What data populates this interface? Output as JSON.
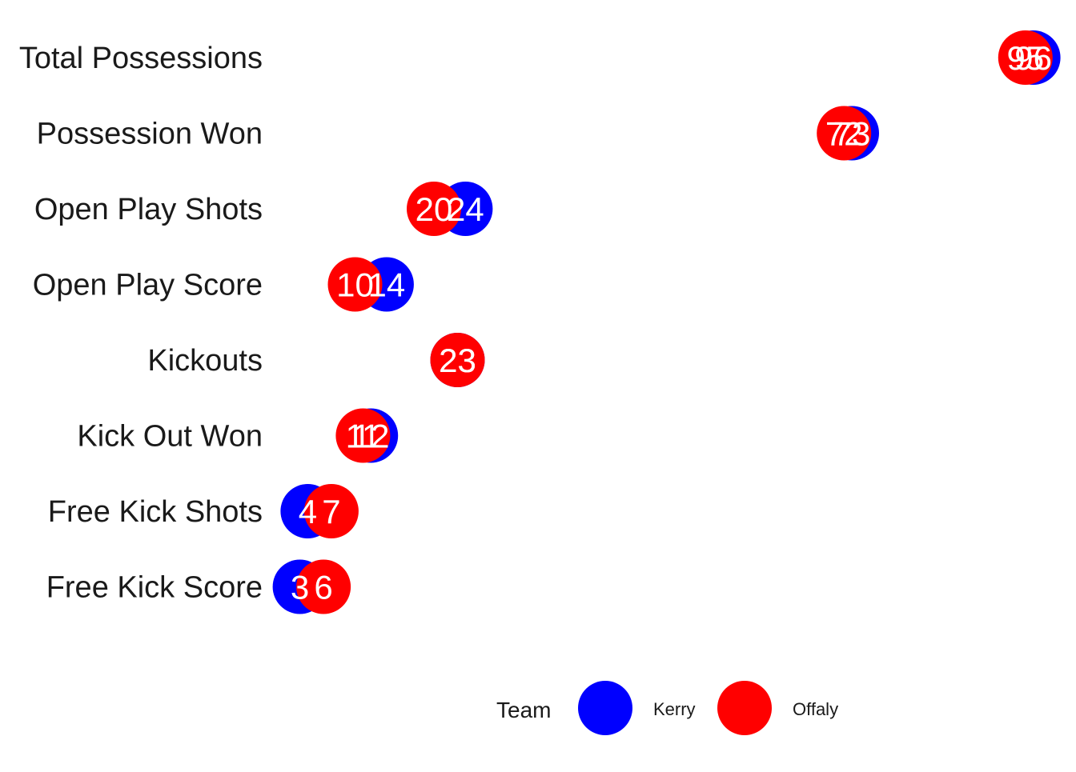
{
  "chart_data": {
    "type": "scatter",
    "title": "",
    "xlabel": "",
    "ylabel": "",
    "categories": [
      "Total Possessions",
      "Possession Won",
      "Open Play Shots",
      "Open Play Score",
      "Kickouts",
      "Kick Out Won",
      "Free Kick Shots",
      "Free Kick Score"
    ],
    "series": [
      {
        "name": "Kerry",
        "color": "#0000ff",
        "values": [
          96,
          73,
          24,
          14,
          23,
          12,
          4,
          3
        ]
      },
      {
        "name": "Offaly",
        "color": "#ff0000",
        "values": [
          95,
          72,
          20,
          10,
          23,
          11,
          7,
          6
        ]
      }
    ],
    "xlim": [
      0,
      100
    ],
    "grid": false,
    "legend": {
      "title": "Team",
      "position": "bottom",
      "entries": [
        "Kerry",
        "Offaly"
      ]
    }
  }
}
